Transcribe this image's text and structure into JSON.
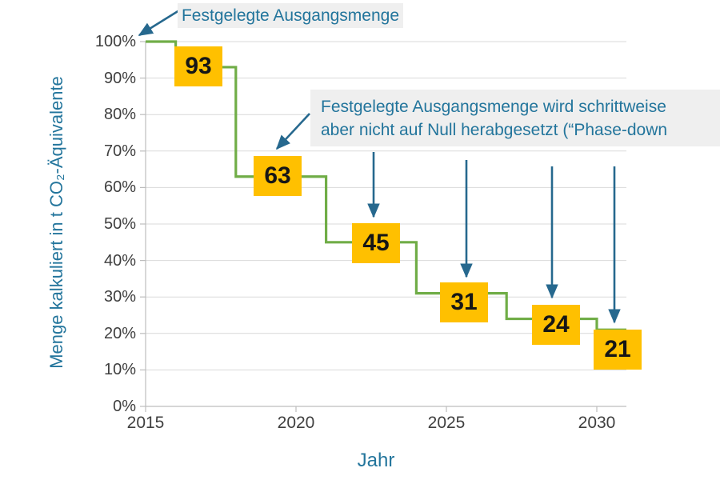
{
  "colors": {
    "line": "#70AD47",
    "value_box_bg": "#FFC000",
    "value_box_text": "#161616",
    "annotation_text": "#23759C",
    "annotation_bg": "#EFEFEF",
    "arrow": "#26688E",
    "grid": "#D9D9D9",
    "axis": "#BDBDBD",
    "tick_label": "#3F3F3F"
  },
  "chart_data": {
    "type": "line",
    "subtype": "step",
    "title": "",
    "xlabel": "Jahr",
    "ylabel": "Menge kalkuliert in t CO₂-Äquivalente",
    "x_ticks": [
      2015,
      2020,
      2025,
      2030
    ],
    "y_ticks": [
      0,
      10,
      20,
      30,
      40,
      50,
      60,
      70,
      80,
      90,
      100
    ],
    "y_tick_suffix": "%",
    "xlim": [
      2015,
      2031
    ],
    "ylim": [
      0,
      100
    ],
    "grid": "horizontal",
    "legend": "none",
    "series": [
      {
        "name": "Phase-down",
        "color": "#70AD47",
        "steps": [
          {
            "from": 2015,
            "to": 2016,
            "value": 100
          },
          {
            "from": 2016,
            "to": 2018,
            "value": 93
          },
          {
            "from": 2018,
            "to": 2021,
            "value": 63
          },
          {
            "from": 2021,
            "to": 2024,
            "value": 45
          },
          {
            "from": 2024,
            "to": 2027,
            "value": 31
          },
          {
            "from": 2027,
            "to": 2030,
            "value": 24
          },
          {
            "from": 2030,
            "to": 2031,
            "value": 21
          }
        ]
      }
    ],
    "point_labels": [
      {
        "value": 93
      },
      {
        "value": 63
      },
      {
        "value": 45
      },
      {
        "value": 31
      },
      {
        "value": 24
      },
      {
        "value": 21
      }
    ],
    "annotations": [
      {
        "text": "Festgelegte Ausgangsmenge",
        "points_to": "100% bei 2015"
      },
      {
        "text_line1": "Festgelegte Ausgangsmenge wird schrittweise",
        "text_line2": "aber nicht auf Null herabgesetzt (“Phase-down",
        "points_to": "63, 45, 31, 24, 21"
      }
    ]
  }
}
